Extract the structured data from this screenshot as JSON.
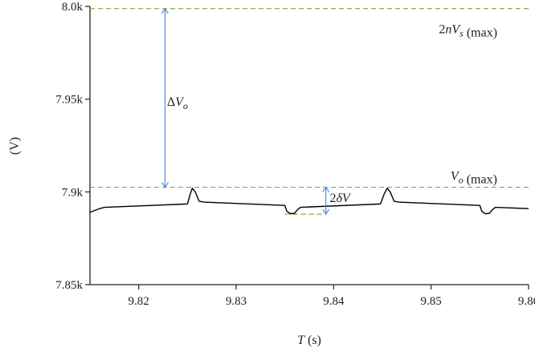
{
  "chart_data": {
    "type": "line",
    "title": "",
    "xlabel": {
      "var": "T",
      "unit": " (s)"
    },
    "ylabel": "(V)",
    "xlim": [
      9.815,
      9.86
    ],
    "ylim": [
      7.85,
      8.0
    ],
    "x_ticks": [
      {
        "value": 9.82,
        "label": "9.82"
      },
      {
        "value": 9.83,
        "label": "9.83"
      },
      {
        "value": 9.84,
        "label": "9.84"
      },
      {
        "value": 9.85,
        "label": "9.85"
      },
      {
        "value": 9.86,
        "label": "9.86"
      }
    ],
    "y_ticks": [
      {
        "value": 7.85,
        "label": "7.85k"
      },
      {
        "value": 7.9,
        "label": "7.9k"
      },
      {
        "value": 7.95,
        "label": "7.95k"
      },
      {
        "value": 8.0,
        "label": "8.0k"
      }
    ],
    "grid": false,
    "series": [
      {
        "color": "#000000",
        "x": [
          9.815,
          9.816,
          9.8165,
          9.825,
          9.8253,
          9.8255,
          9.8258,
          9.8262,
          9.8267,
          9.835,
          9.8352,
          9.8356,
          9.836,
          9.8363,
          9.8366,
          9.8448,
          9.8452,
          9.8455,
          9.8458,
          9.8462,
          9.8467,
          9.855,
          9.8552,
          9.8556,
          9.856,
          9.8563,
          9.8566,
          9.86
        ],
        "y": [
          7.889,
          7.891,
          7.8917,
          7.8935,
          7.899,
          7.902,
          7.9,
          7.895,
          7.8945,
          7.8927,
          7.8895,
          7.8882,
          7.8885,
          7.8905,
          7.8917,
          7.8935,
          7.899,
          7.902,
          7.9,
          7.895,
          7.8945,
          7.8927,
          7.8895,
          7.8882,
          7.8885,
          7.8905,
          7.8917,
          7.891
        ]
      }
    ],
    "reference_lines": [
      {
        "y": 7.9988,
        "x_from": 9.815,
        "x_to": 9.86,
        "color": "#7aaf4c"
      },
      {
        "y": 7.9025,
        "x_from": 9.815,
        "x_to": 9.86,
        "color": "#7aaf4c"
      },
      {
        "y": 7.888,
        "x_from": 9.835,
        "x_to": 9.8392,
        "color": "#7aaf4c"
      }
    ],
    "arrows": [
      {
        "x": 9.8227,
        "y_from": 7.9025,
        "y_to": 7.9988,
        "color": "#4f8fd8"
      },
      {
        "x": 9.8392,
        "y_from": 7.888,
        "y_to": 7.9025,
        "color": "#4f8fd8"
      }
    ],
    "annotations": [
      {
        "x": 9.8229,
        "y": 7.9465,
        "parts": [
          {
            "t": "Δ",
            "i": false
          },
          {
            "t": "V",
            "i": true
          },
          {
            "t": "o",
            "i": true,
            "sub": true
          }
        ]
      },
      {
        "x": 9.8396,
        "y": 7.8945,
        "parts": [
          {
            "t": "2",
            "i": false
          },
          {
            "t": "δV",
            "i": true
          }
        ]
      },
      {
        "x": 9.8508,
        "y": 7.9855,
        "parts": [
          {
            "t": "2",
            "i": false
          },
          {
            "t": "nV",
            "i": true
          },
          {
            "t": "s",
            "i": true,
            "sub": true
          },
          {
            "t": " (max)",
            "i": false
          }
        ]
      },
      {
        "x": 9.852,
        "y": 7.9065,
        "parts": [
          {
            "t": "V",
            "i": true
          },
          {
            "t": "o",
            "i": true,
            "sub": true
          },
          {
            "t": " (max)",
            "i": false
          }
        ]
      }
    ]
  }
}
